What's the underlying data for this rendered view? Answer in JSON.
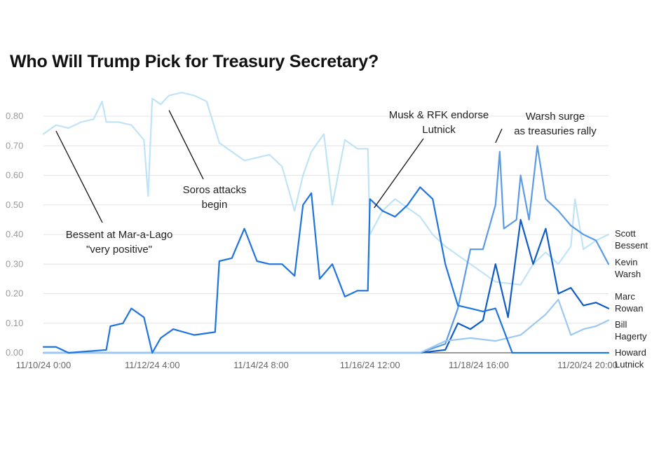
{
  "chart_data": {
    "type": "line",
    "title": "Who Will Trump Pick for Treasury Secretary?",
    "xlabel": "",
    "ylabel": "",
    "ylim": [
      0,
      0.9
    ],
    "x_range": [
      "11/10/24 0:00",
      "11/21/24 6:00"
    ],
    "grid": true,
    "y_ticks": [
      "0.00",
      "0.10",
      "0.20",
      "0.30",
      "0.40",
      "0.50",
      "0.60",
      "0.70",
      "0.80"
    ],
    "x_ticks": [
      "11/10/24 0:00",
      "11/12/24 4:00",
      "11/14/24 8:00",
      "11/16/24 12:00",
      "11/18/24 16:00",
      "11/20/24 20:00"
    ],
    "series": [
      {
        "name": "Scott Bessent",
        "color": "#bfe3f7",
        "points": [
          [
            "11/10/24 0:00",
            0.74
          ],
          [
            "11/10/24 6:00",
            0.77
          ],
          [
            "11/10/24 12:00",
            0.76
          ],
          [
            "11/10/24 18:00",
            0.78
          ],
          [
            "11/11/24 0:00",
            0.79
          ],
          [
            "11/11/24 4:00",
            0.85
          ],
          [
            "11/11/24 6:00",
            0.78
          ],
          [
            "11/11/24 12:00",
            0.78
          ],
          [
            "11/11/24 18:00",
            0.77
          ],
          [
            "11/12/24 0:00",
            0.72
          ],
          [
            "11/12/24 2:00",
            0.53
          ],
          [
            "11/12/24 4:00",
            0.86
          ],
          [
            "11/12/24 8:00",
            0.84
          ],
          [
            "11/12/24 12:00",
            0.87
          ],
          [
            "11/12/24 18:00",
            0.88
          ],
          [
            "11/13/24 0:00",
            0.87
          ],
          [
            "11/13/24 6:00",
            0.85
          ],
          [
            "11/13/24 12:00",
            0.71
          ],
          [
            "11/13/24 18:00",
            0.68
          ],
          [
            "11/14/24 0:00",
            0.65
          ],
          [
            "11/14/24 6:00",
            0.66
          ],
          [
            "11/14/24 12:00",
            0.67
          ],
          [
            "11/14/24 18:00",
            0.63
          ],
          [
            "11/15/24 0:00",
            0.48
          ],
          [
            "11/15/24 4:00",
            0.6
          ],
          [
            "11/15/24 8:00",
            0.68
          ],
          [
            "11/15/24 14:00",
            0.74
          ],
          [
            "11/15/24 18:00",
            0.5
          ],
          [
            "11/16/24 0:00",
            0.72
          ],
          [
            "11/16/24 6:00",
            0.69
          ],
          [
            "11/16/24 11:00",
            0.69
          ],
          [
            "11/16/24 12:00",
            0.4
          ],
          [
            "11/16/24 18:00",
            0.48
          ],
          [
            "11/17/24 0:00",
            0.52
          ],
          [
            "11/17/24 6:00",
            0.49
          ],
          [
            "11/17/24 12:00",
            0.46
          ],
          [
            "11/17/24 18:00",
            0.4
          ],
          [
            "11/18/24 0:00",
            0.36
          ],
          [
            "11/18/24 6:00",
            0.33
          ],
          [
            "11/18/24 12:00",
            0.3
          ],
          [
            "11/18/24 18:00",
            0.27
          ],
          [
            "11/19/24 0:00",
            0.24
          ],
          [
            "11/19/24 12:00",
            0.23
          ],
          [
            "11/19/24 18:00",
            0.3
          ],
          [
            "11/20/24 0:00",
            0.34
          ],
          [
            "11/20/24 6:00",
            0.3
          ],
          [
            "11/20/24 12:00",
            0.36
          ],
          [
            "11/20/24 14:00",
            0.52
          ],
          [
            "11/20/24 18:00",
            0.35
          ],
          [
            "11/21/24 0:00",
            0.38
          ],
          [
            "11/21/24 6:00",
            0.4
          ]
        ]
      },
      {
        "name": "Kevin Warsh",
        "color": "#5b9be6",
        "points": [
          [
            "11/10/24 0:00",
            0.0
          ],
          [
            "11/14/24 0:00",
            0.0
          ],
          [
            "11/16/24 0:00",
            0.0
          ],
          [
            "11/17/24 12:00",
            0.0
          ],
          [
            "11/18/24 0:00",
            0.03
          ],
          [
            "11/18/24 6:00",
            0.15
          ],
          [
            "11/18/24 12:00",
            0.35
          ],
          [
            "11/18/24 18:00",
            0.35
          ],
          [
            "11/19/24 0:00",
            0.5
          ],
          [
            "11/19/24 2:00",
            0.68
          ],
          [
            "11/19/24 4:00",
            0.42
          ],
          [
            "11/19/24 10:00",
            0.45
          ],
          [
            "11/19/24 12:00",
            0.6
          ],
          [
            "11/19/24 16:00",
            0.45
          ],
          [
            "11/19/24 20:00",
            0.7
          ],
          [
            "11/20/24 0:00",
            0.52
          ],
          [
            "11/20/24 6:00",
            0.48
          ],
          [
            "11/20/24 12:00",
            0.43
          ],
          [
            "11/20/24 18:00",
            0.4
          ],
          [
            "11/21/24 0:00",
            0.38
          ],
          [
            "11/21/24 6:00",
            0.3
          ]
        ]
      },
      {
        "name": "Marc Rowan",
        "color": "#0f5cc7",
        "points": [
          [
            "11/10/24 0:00",
            0.0
          ],
          [
            "11/14/24 0:00",
            0.0
          ],
          [
            "11/17/24 12:00",
            0.0
          ],
          [
            "11/18/24 0:00",
            0.01
          ],
          [
            "11/18/24 6:00",
            0.1
          ],
          [
            "11/18/24 12:00",
            0.08
          ],
          [
            "11/18/24 18:00",
            0.11
          ],
          [
            "11/19/24 0:00",
            0.3
          ],
          [
            "11/19/24 6:00",
            0.12
          ],
          [
            "11/19/24 12:00",
            0.45
          ],
          [
            "11/19/24 18:00",
            0.3
          ],
          [
            "11/20/24 0:00",
            0.42
          ],
          [
            "11/20/24 6:00",
            0.2
          ],
          [
            "11/20/24 12:00",
            0.22
          ],
          [
            "11/20/24 18:00",
            0.16
          ],
          [
            "11/21/24 0:00",
            0.17
          ],
          [
            "11/21/24 6:00",
            0.15
          ]
        ]
      },
      {
        "name": "Bill Hagerty",
        "color": "#9cc8f2",
        "points": [
          [
            "11/10/24 0:00",
            0.0
          ],
          [
            "11/14/24 0:00",
            0.0
          ],
          [
            "11/17/24 12:00",
            0.0
          ],
          [
            "11/18/24 0:00",
            0.04
          ],
          [
            "11/18/24 12:00",
            0.05
          ],
          [
            "11/19/24 0:00",
            0.04
          ],
          [
            "11/19/24 12:00",
            0.06
          ],
          [
            "11/20/24 0:00",
            0.13
          ],
          [
            "11/20/24 6:00",
            0.18
          ],
          [
            "11/20/24 12:00",
            0.06
          ],
          [
            "11/20/24 18:00",
            0.08
          ],
          [
            "11/21/24 0:00",
            0.09
          ],
          [
            "11/21/24 6:00",
            0.11
          ]
        ]
      },
      {
        "name": "Howard Lutnick",
        "color": "#1f74de",
        "points": [
          [
            "11/10/24 0:00",
            0.02
          ],
          [
            "11/10/24 6:00",
            0.02
          ],
          [
            "11/10/24 12:00",
            0.0
          ],
          [
            "11/11/24 6:00",
            0.01
          ],
          [
            "11/11/24 8:00",
            0.09
          ],
          [
            "11/11/24 14:00",
            0.1
          ],
          [
            "11/11/24 18:00",
            0.15
          ],
          [
            "11/12/24 0:00",
            0.12
          ],
          [
            "11/12/24 4:00",
            0.0
          ],
          [
            "11/12/24 8:00",
            0.05
          ],
          [
            "11/12/24 14:00",
            0.08
          ],
          [
            "11/13/24 0:00",
            0.06
          ],
          [
            "11/13/24 10:00",
            0.07
          ],
          [
            "11/13/24 12:00",
            0.31
          ],
          [
            "11/13/24 18:00",
            0.32
          ],
          [
            "11/14/24 0:00",
            0.42
          ],
          [
            "11/14/24 6:00",
            0.31
          ],
          [
            "11/14/24 12:00",
            0.3
          ],
          [
            "11/14/24 18:00",
            0.3
          ],
          [
            "11/15/24 0:00",
            0.26
          ],
          [
            "11/15/24 4:00",
            0.5
          ],
          [
            "11/15/24 8:00",
            0.54
          ],
          [
            "11/15/24 12:00",
            0.25
          ],
          [
            "11/15/24 18:00",
            0.3
          ],
          [
            "11/16/24 0:00",
            0.19
          ],
          [
            "11/16/24 6:00",
            0.21
          ],
          [
            "11/16/24 11:00",
            0.21
          ],
          [
            "11/16/24 12:00",
            0.52
          ],
          [
            "11/16/24 18:00",
            0.48
          ],
          [
            "11/17/24 0:00",
            0.46
          ],
          [
            "11/17/24 6:00",
            0.5
          ],
          [
            "11/17/24 12:00",
            0.56
          ],
          [
            "11/17/24 18:00",
            0.52
          ],
          [
            "11/18/24 0:00",
            0.3
          ],
          [
            "11/18/24 6:00",
            0.16
          ],
          [
            "11/18/24 12:00",
            0.15
          ],
          [
            "11/18/24 18:00",
            0.14
          ],
          [
            "11/19/24 0:00",
            0.15
          ],
          [
            "11/19/24 8:00",
            0.0
          ],
          [
            "11/20/24 0:00",
            0.0
          ],
          [
            "11/21/24 6:00",
            0.0
          ]
        ]
      }
    ],
    "series_labels": [
      {
        "lines": [
          "Scott",
          "Bessent"
        ],
        "series": "Scott Bessent"
      },
      {
        "lines": [
          "Kevin",
          "Warsh"
        ],
        "series": "Kevin Warsh"
      },
      {
        "lines": [
          "Marc",
          "Rowan"
        ],
        "series": "Marc Rowan"
      },
      {
        "lines": [
          "Bill",
          "Hagerty"
        ],
        "series": "Bill Hagerty"
      },
      {
        "lines": [
          "Howard",
          "Lutnick"
        ],
        "series": "Howard Lutnick"
      }
    ],
    "annotations": [
      {
        "lines": [
          "Bessent at Mar-a-Lago",
          "\"very positive\""
        ],
        "points_to": [
          "11/10/24 6:00",
          0.75
        ]
      },
      {
        "lines": [
          "Soros attacks",
          "begin"
        ],
        "points_to": [
          "11/12/24 12:00",
          0.82
        ]
      },
      {
        "lines": [
          "Musk & RFK endorse",
          "Lutnick"
        ],
        "points_to": [
          "11/16/24 14:00",
          0.49
        ]
      },
      {
        "lines": [
          "Warsh surge",
          "as treasuries rally"
        ],
        "points_to": [
          "11/19/24 0:00",
          0.71
        ]
      }
    ]
  }
}
